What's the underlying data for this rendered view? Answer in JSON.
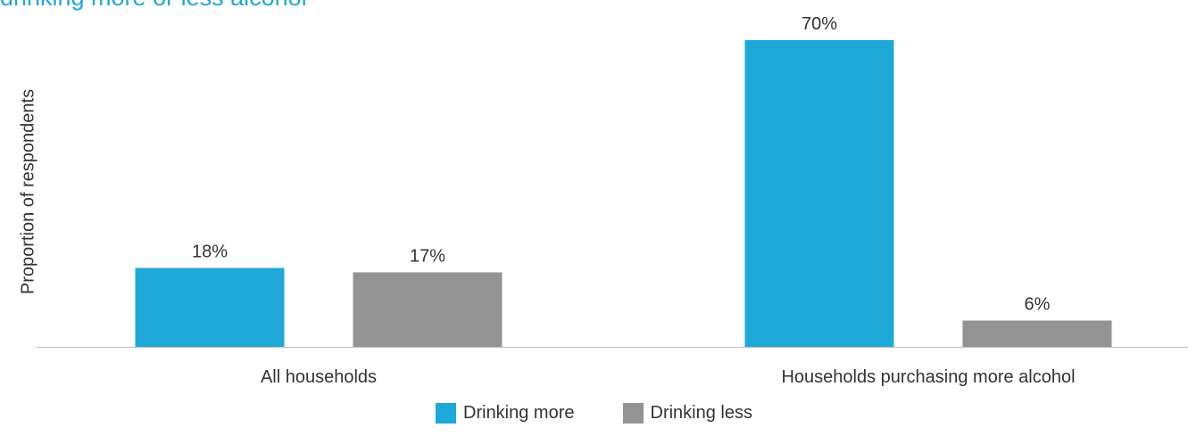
{
  "title": "drinking more or less alcohol",
  "chart_data": {
    "type": "bar",
    "ylabel": "Proportion of respondents",
    "xlabel": "",
    "categories": [
      "All households",
      "Households purchasing more alcohol"
    ],
    "series": [
      {
        "name": "Drinking more",
        "color": "#1ea8d8",
        "values": [
          18,
          70
        ],
        "labels": [
          "18%",
          "70%"
        ]
      },
      {
        "name": "Drinking less",
        "color": "#939393",
        "values": [
          17,
          6
        ],
        "labels": [
          "17%",
          "6%"
        ]
      }
    ],
    "ylim": [
      0,
      70
    ],
    "grid": false,
    "legend": "bottom-center"
  }
}
